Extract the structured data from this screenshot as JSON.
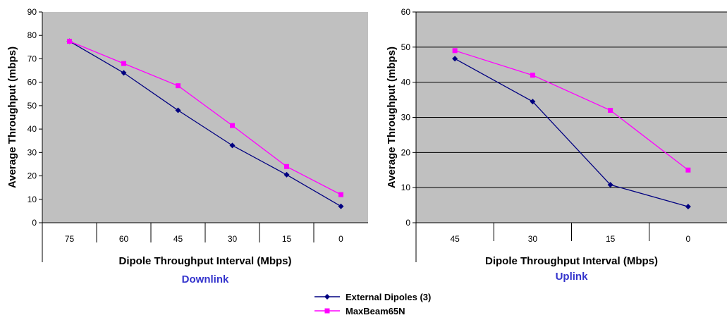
{
  "chart_data": [
    {
      "type": "line",
      "caption": "Downlink",
      "xlabel": "Dipole Throughput Interval (Mbps)",
      "ylabel": "Average Throughput (mbps)",
      "categories": [
        "75",
        "60",
        "45",
        "30",
        "15",
        "0"
      ],
      "ylim": [
        0,
        90
      ],
      "yticks": [
        "0",
        "10",
        "20",
        "30",
        "40",
        "50",
        "60",
        "70",
        "80",
        "90"
      ],
      "grid": false,
      "series": [
        {
          "name": "External Dipoles (3)",
          "values": [
            77.5,
            64,
            48,
            33,
            20.5,
            7
          ]
        },
        {
          "name": "MaxBeam65N",
          "values": [
            77.5,
            68,
            58.5,
            41.5,
            24,
            12
          ]
        }
      ]
    },
    {
      "type": "line",
      "caption": "Uplink",
      "xlabel": "Dipole Throughput Interval (Mbps)",
      "ylabel": "Average Throughput (mbps)",
      "categories": [
        "45",
        "30",
        "15",
        "0"
      ],
      "ylim": [
        0,
        60
      ],
      "yticks": [
        "0",
        "10",
        "20",
        "30",
        "40",
        "50",
        "60"
      ],
      "grid": true,
      "series": [
        {
          "name": "External Dipoles (3)",
          "values": [
            46.7,
            34.5,
            10.8,
            4.6
          ]
        },
        {
          "name": "MaxBeam65N",
          "values": [
            49,
            42,
            32,
            15
          ]
        }
      ]
    }
  ],
  "legend": {
    "placement": "bottom-center",
    "items": [
      {
        "label": "External Dipoles (3)",
        "color": "#000080",
        "marker": "diamond"
      },
      {
        "label": "MaxBeam65N",
        "color": "#ff00ff",
        "marker": "square"
      }
    ]
  },
  "colors": {
    "plot_bg": "#c0c0c0",
    "series_1": "#000080",
    "series_2": "#ff00ff",
    "caption": "#3333cc"
  }
}
